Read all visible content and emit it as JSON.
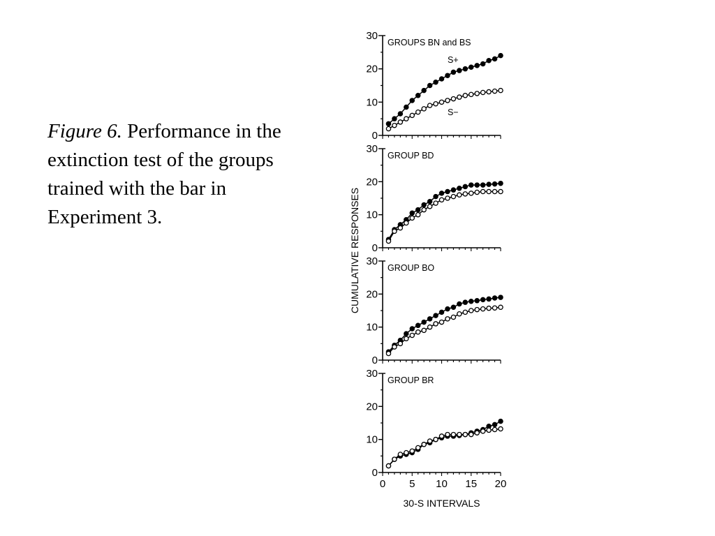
{
  "caption": {
    "label": "Figure 6.",
    "text": "Performance in the extinction test of the groups trained with the bar in Experiment 3."
  },
  "chart_data": {
    "type": "line",
    "ylabel": "CUMULATIVE RESPONSES",
    "xlabel": "30-S INTERVALS",
    "x_ticks": [
      "0",
      "5",
      "10",
      "15",
      "20"
    ],
    "y_ticks": [
      "0",
      "10",
      "20",
      "30"
    ],
    "xlim": [
      0,
      20
    ],
    "ylim": [
      0,
      30
    ],
    "x": [
      1,
      2,
      3,
      4,
      5,
      6,
      7,
      8,
      9,
      10,
      11,
      12,
      13,
      14,
      15,
      16,
      17,
      18,
      19,
      20
    ],
    "grid": false,
    "marker_colors": {
      "s_plus": "#000000",
      "s_minus": "#ffffff"
    },
    "panels": [
      {
        "title": "GROUPS BN and BS",
        "annotations": [
          "S+",
          "S−"
        ],
        "series": [
          {
            "name": "S+",
            "marker": "filled",
            "values": [
              3.5,
              5.0,
              6.5,
              8.5,
              10.5,
              12.0,
              13.5,
              15.0,
              16.0,
              17.0,
              18.0,
              19.0,
              19.5,
              20.0,
              20.5,
              21.0,
              21.5,
              22.5,
              23.0,
              24.0
            ]
          },
          {
            "name": "S−",
            "marker": "open",
            "values": [
              2.0,
              3.0,
              4.0,
              5.0,
              6.0,
              7.0,
              8.0,
              9.0,
              9.5,
              10.0,
              10.5,
              11.0,
              11.5,
              12.0,
              12.3,
              12.6,
              12.9,
              13.1,
              13.3,
              13.5
            ]
          }
        ]
      },
      {
        "title": "GROUP BD",
        "annotations": [],
        "series": [
          {
            "name": "S+",
            "marker": "filled",
            "values": [
              2.5,
              5.5,
              7.0,
              8.5,
              10.5,
              11.5,
              13.0,
              14.0,
              15.5,
              16.5,
              17.0,
              17.5,
              18.0,
              18.5,
              19.0,
              19.0,
              19.0,
              19.2,
              19.3,
              19.5
            ]
          },
          {
            "name": "S−",
            "marker": "open",
            "values": [
              2.0,
              5.0,
              6.0,
              7.5,
              9.0,
              10.0,
              11.5,
              12.5,
              13.5,
              14.5,
              15.0,
              15.5,
              16.0,
              16.3,
              16.5,
              16.8,
              17.0,
              17.0,
              17.0,
              17.0
            ]
          }
        ]
      },
      {
        "title": "GROUP BO",
        "annotations": [],
        "series": [
          {
            "name": "S+",
            "marker": "filled",
            "values": [
              2.5,
              4.5,
              6.0,
              8.0,
              9.5,
              10.5,
              11.5,
              12.5,
              13.5,
              14.5,
              15.5,
              16.0,
              17.0,
              17.5,
              17.8,
              18.0,
              18.3,
              18.5,
              18.8,
              19.0
            ]
          },
          {
            "name": "S−",
            "marker": "open",
            "values": [
              2.0,
              4.0,
              5.0,
              6.5,
              7.5,
              8.5,
              9.0,
              10.0,
              11.0,
              11.5,
              12.5,
              13.0,
              14.0,
              14.5,
              15.0,
              15.3,
              15.5,
              15.7,
              15.8,
              16.0
            ]
          }
        ]
      },
      {
        "title": "GROUP BR",
        "annotations": [],
        "series": [
          {
            "name": "S+",
            "marker": "filled",
            "values": [
              2.0,
              4.0,
              5.0,
              5.5,
              6.0,
              7.0,
              8.5,
              9.0,
              10.0,
              10.5,
              11.0,
              11.0,
              11.2,
              11.5,
              12.0,
              12.5,
              13.0,
              14.0,
              14.5,
              15.5
            ]
          },
          {
            "name": "S−",
            "marker": "open",
            "values": [
              2.0,
              4.0,
              5.5,
              6.0,
              6.5,
              7.5,
              8.5,
              9.5,
              10.0,
              11.0,
              11.5,
              11.5,
              11.5,
              11.5,
              11.5,
              12.0,
              12.5,
              12.8,
              13.0,
              13.2
            ]
          }
        ]
      }
    ]
  }
}
